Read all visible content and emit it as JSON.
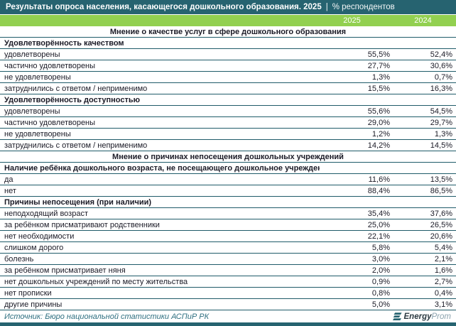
{
  "header": {
    "title_main": "Результаты опроса населения, касающегося дошкольного образования. 2025",
    "separator": "|",
    "title_suffix": "% респондентов"
  },
  "chart_data": {
    "type": "table",
    "title": "Результаты опроса населения, касающегося дошкольного образования. 2025 | % респондентов",
    "units": "% респондентов",
    "columns": [
      "2025",
      "2024"
    ],
    "rows": [
      {
        "kind": "group",
        "label": "Мнение о качестве услуг в сфере дошкольного образования"
      },
      {
        "kind": "section",
        "label": "Удовлетворённость качеством"
      },
      {
        "kind": "data",
        "label": "удовлетворены",
        "values": [
          "55,5%",
          "52,4%"
        ]
      },
      {
        "kind": "data",
        "label": "частично удовлетворены",
        "values": [
          "27,7%",
          "30,6%"
        ]
      },
      {
        "kind": "data",
        "label": "не удовлетворены",
        "values": [
          "1,3%",
          "0,7%"
        ]
      },
      {
        "kind": "data",
        "label": "затруднились с ответом / неприменимо",
        "values": [
          "15,5%",
          "16,3%"
        ]
      },
      {
        "kind": "section",
        "label": "Удовлетворённость доступностью"
      },
      {
        "kind": "data",
        "label": "удовлетворены",
        "values": [
          "55,6%",
          "54,5%"
        ]
      },
      {
        "kind": "data",
        "label": "частично удовлетворены",
        "values": [
          "29,0%",
          "29,7%"
        ]
      },
      {
        "kind": "data",
        "label": "не удовлетворены",
        "values": [
          "1,2%",
          "1,3%"
        ]
      },
      {
        "kind": "data",
        "label": "затруднились с ответом / неприменимо",
        "values": [
          "14,2%",
          "14,5%"
        ]
      },
      {
        "kind": "group",
        "label": "Мнение о причинах непосещения дошкольных учреждений"
      },
      {
        "kind": "section",
        "label": "Наличие ребёнка дошкольного возраста, не посещающего дошкольное учреждение"
      },
      {
        "kind": "data",
        "label": "да",
        "values": [
          "11,6%",
          "13,5%"
        ]
      },
      {
        "kind": "data",
        "label": "нет",
        "values": [
          "88,4%",
          "86,5%"
        ]
      },
      {
        "kind": "section",
        "label": "Причины непосещения (при наличии)"
      },
      {
        "kind": "data",
        "label": "неподходящий возраст",
        "values": [
          "35,4%",
          "37,6%"
        ]
      },
      {
        "kind": "data",
        "label": "за ребёнком присматривают родственники",
        "values": [
          "25,0%",
          "26,5%"
        ]
      },
      {
        "kind": "data",
        "label": "нет необходимости",
        "values": [
          "22,1%",
          "20,6%"
        ]
      },
      {
        "kind": "data",
        "label": "слишком дорого",
        "values": [
          "5,8%",
          "5,4%"
        ]
      },
      {
        "kind": "data",
        "label": "болезнь",
        "values": [
          "3,0%",
          "2,1%"
        ]
      },
      {
        "kind": "data",
        "label": "за ребёнком присматривает няня",
        "values": [
          "2,0%",
          "1,6%"
        ]
      },
      {
        "kind": "data",
        "label": "нет дошкольных учреждений по месту жительства",
        "values": [
          "0,9%",
          "2,7%"
        ]
      },
      {
        "kind": "data",
        "label": "нет прописки",
        "values": [
          "0,8%",
          "0,4%"
        ]
      },
      {
        "kind": "data",
        "label": "другие причины",
        "values": [
          "5,0%",
          "3,1%"
        ]
      }
    ]
  },
  "footer": {
    "source": "Источник: Бюро национальной статистики АСПиР РК",
    "logo_energy": "Energy",
    "logo_prom": "Prom"
  },
  "colors": {
    "accent_teal": "#266370",
    "header_green": "#92d050",
    "row_border": "#1f5b69",
    "text": "#1a1a26",
    "source_text": "#2e6f80"
  }
}
